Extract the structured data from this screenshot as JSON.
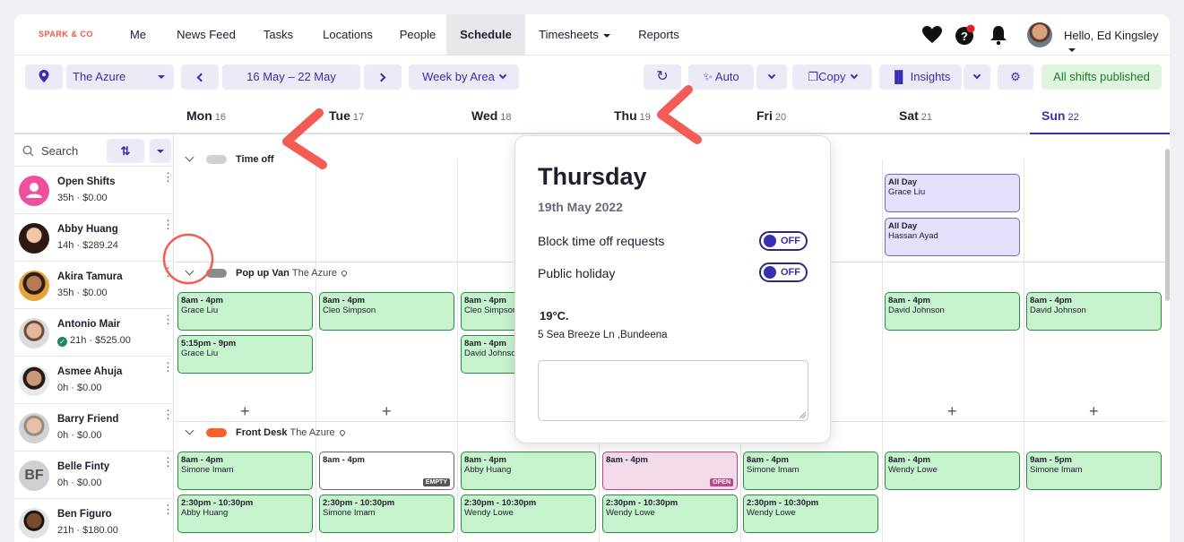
{
  "nav": {
    "logo": "SPARK & CO",
    "items": [
      "Me",
      "News Feed",
      "Tasks",
      "Locations",
      "People",
      "Schedule",
      "Timesheets",
      "Reports"
    ],
    "active": "Schedule",
    "greeting": "Hello, Ed Kingsley"
  },
  "toolbar": {
    "location": "The Azure",
    "date_range": "16 May – 22 May",
    "view": "Week by Area",
    "auto": "Auto",
    "copy": "Copy",
    "insights": "Insights",
    "published": "All shifts published"
  },
  "days": [
    {
      "name": "Mon",
      "num": "16"
    },
    {
      "name": "Tue",
      "num": "17"
    },
    {
      "name": "Wed",
      "num": "18"
    },
    {
      "name": "Thu",
      "num": "19"
    },
    {
      "name": "Fri",
      "num": "20"
    },
    {
      "name": "Sat",
      "num": "21"
    },
    {
      "name": "Sun",
      "num": "22"
    }
  ],
  "sidebar": {
    "search_placeholder": "Search",
    "employees": [
      {
        "name": "Open Shifts",
        "sub": "35h · $0.00"
      },
      {
        "name": "Abby Huang",
        "sub": "14h · $289.24"
      },
      {
        "name": "Akira Tamura",
        "sub": "35h · $0.00"
      },
      {
        "name": "Antonio Mair",
        "sub": "21h · $525.00"
      },
      {
        "name": "Asmee Ahuja",
        "sub": "0h · $0.00"
      },
      {
        "name": "Barry Friend",
        "sub": "0h · $0.00"
      },
      {
        "name": "Belle Finty",
        "sub": "0h · $0.00",
        "initials": "BF"
      },
      {
        "name": "Ben Figuro",
        "sub": "21h · $180.00"
      }
    ]
  },
  "areas": {
    "timeoff": {
      "name": "Time off"
    },
    "popup": {
      "name": "Pop up Van",
      "loc": "The Azure"
    },
    "front": {
      "name": "Front Desk",
      "loc": "The Azure"
    }
  },
  "shifts": {
    "sat_off1": {
      "time": "All Day",
      "who": "Grace Liu"
    },
    "sat_off2": {
      "time": "All Day",
      "who": "Hassan Ayad"
    },
    "pv_mon1": {
      "time": "8am - 4pm",
      "who": "Grace Liu"
    },
    "pv_mon2": {
      "time": "5:15pm - 9pm",
      "who": "Grace Liu"
    },
    "pv_tue1": {
      "time": "8am - 4pm",
      "who": "Cleo Simpson"
    },
    "pv_wed1": {
      "time": "8am - 4pm",
      "who": "Cleo Simpson"
    },
    "pv_wed2": {
      "time": "8am - 4pm",
      "who": "David Johnson"
    },
    "pv_sat1": {
      "time": "8am - 4pm",
      "who": "David Johnson"
    },
    "pv_sun1": {
      "time": "8am - 4pm",
      "who": "David Johnson"
    },
    "fd_mon1": {
      "time": "8am - 4pm",
      "who": "Simone Imam"
    },
    "fd_mon2": {
      "time": "2:30pm - 10:30pm",
      "who": "Abby Huang"
    },
    "fd_tue1": {
      "time": "8am - 4pm",
      "who": "",
      "tag": "EMPTY"
    },
    "fd_tue2": {
      "time": "2:30pm - 10:30pm",
      "who": "Simone Imam"
    },
    "fd_wed1": {
      "time": "8am - 4pm",
      "who": "Abby Huang"
    },
    "fd_wed2": {
      "time": "2:30pm - 10:30pm",
      "who": "Wendy Lowe"
    },
    "fd_thu1": {
      "time": "8am - 4pm",
      "who": "",
      "tag": "OPEN"
    },
    "fd_thu2": {
      "time": "2:30pm - 10:30pm",
      "who": "Wendy Lowe"
    },
    "fd_fri1": {
      "time": "8am - 4pm",
      "who": "Simone Imam"
    },
    "fd_fri2": {
      "time": "2:30pm - 10:30pm",
      "who": "Wendy Lowe"
    },
    "fd_sat1": {
      "time": "8am - 4pm",
      "who": "Wendy Lowe"
    },
    "fd_sun1": {
      "time": "9am - 5pm",
      "who": "Simone Imam"
    }
  },
  "popover": {
    "title": "Thursday",
    "date": "19th May 2022",
    "block_label": "Block time off requests",
    "block_state": "OFF",
    "holiday_label": "Public holiday",
    "holiday_state": "OFF",
    "temperature": "19°C.",
    "address": "5 Sea Breeze Ln ,Bundeena"
  },
  "colors": {
    "accent": "#3a2fb0",
    "shift_fill": "#c6f3cd",
    "annotation": "#f25c54"
  }
}
